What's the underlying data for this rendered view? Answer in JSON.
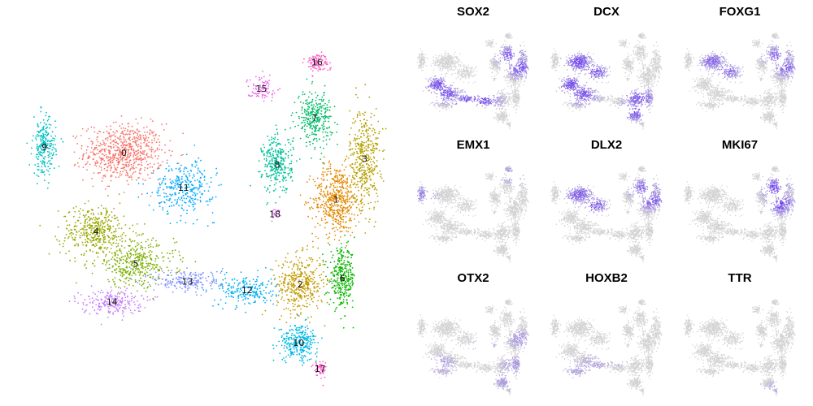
{
  "chart_data": [
    {
      "type": "scatter",
      "subtype": "umap-clusters",
      "title": "",
      "xlabel": "",
      "ylabel": "",
      "grid": false,
      "legend": "none",
      "clusters": [
        {
          "label": "0",
          "color": "#F8766D",
          "center": [
            14.5,
            31.5
          ],
          "spread": [
            4.5,
            4.5
          ],
          "n": 700
        },
        {
          "label": "1",
          "color": "#E38900",
          "center": [
            41.2,
            23.5
          ],
          "spread": [
            2.6,
            5.5
          ],
          "n": 520
        },
        {
          "label": "2",
          "color": "#C49A00",
          "center": [
            36.7,
            9.0
          ],
          "spread": [
            2.7,
            4.5
          ],
          "n": 400
        },
        {
          "label": "3",
          "color": "#B6A000",
          "center": [
            44.8,
            30.5
          ],
          "spread": [
            1.7,
            8.0
          ],
          "n": 420
        },
        {
          "label": "4",
          "color": "#99A800",
          "center": [
            11.0,
            18.0
          ],
          "spread": [
            4.0,
            4.0
          ],
          "n": 420
        },
        {
          "label": "5",
          "color": "#7CAE00",
          "center": [
            16.0,
            12.5
          ],
          "spread": [
            4.5,
            3.5
          ],
          "n": 380
        },
        {
          "label": "6",
          "color": "#0CB702",
          "center": [
            42.0,
            10.0
          ],
          "spread": [
            1.5,
            4.5
          ],
          "n": 320
        },
        {
          "label": "7",
          "color": "#00BE67",
          "center": [
            38.5,
            37.5
          ],
          "spread": [
            2.0,
            4.0
          ],
          "n": 320
        },
        {
          "label": "8",
          "color": "#00C19A",
          "center": [
            33.8,
            29.5
          ],
          "spread": [
            1.7,
            4.5
          ],
          "n": 300
        },
        {
          "label": "9",
          "color": "#00BFC4",
          "center": [
            4.5,
            32.5
          ],
          "spread": [
            1.3,
            4.5
          ],
          "n": 240
        },
        {
          "label": "10",
          "color": "#00B8E7",
          "center": [
            36.5,
            -1.0
          ],
          "spread": [
            2.2,
            2.8
          ],
          "n": 280
        },
        {
          "label": "11",
          "color": "#00A9FF",
          "center": [
            22.0,
            25.5
          ],
          "spread": [
            3.5,
            4.0
          ],
          "n": 320
        },
        {
          "label": "12",
          "color": "#01B0F3",
          "center": [
            30.0,
            8.0
          ],
          "spread": [
            3.2,
            2.5
          ],
          "n": 220
        },
        {
          "label": "13",
          "color": "#8494FF",
          "center": [
            22.5,
            9.5
          ],
          "spread": [
            4.0,
            1.8
          ],
          "n": 200
        },
        {
          "label": "14",
          "color": "#C77CFF",
          "center": [
            13.0,
            6.0
          ],
          "spread": [
            3.5,
            2.0
          ],
          "n": 220
        },
        {
          "label": "15",
          "color": "#ED68ED",
          "center": [
            31.8,
            42.5
          ],
          "spread": [
            1.6,
            1.8
          ],
          "n": 90
        },
        {
          "label": "16",
          "color": "#FF61C3",
          "center": [
            38.8,
            47.0
          ],
          "spread": [
            1.4,
            1.4
          ],
          "n": 110
        },
        {
          "label": "17",
          "color": "#FF61C9",
          "center": [
            39.2,
            -5.5
          ],
          "spread": [
            0.7,
            1.5
          ],
          "n": 60
        },
        {
          "label": "18",
          "color": "#E76BF3",
          "center": [
            33.5,
            21.0
          ],
          "spread": [
            0.6,
            0.8
          ],
          "n": 20
        }
      ]
    },
    {
      "type": "scatter",
      "subtype": "feature-plots",
      "low_color": "#D3D3D3",
      "high_color": "#6A3CF0",
      "panels": [
        {
          "gene": "SOX2",
          "high_regions": [
            "top-right",
            "left-arm",
            "center-band"
          ],
          "level": 0.85
        },
        {
          "gene": "DCX",
          "high_regions": [
            "left-lobe",
            "upper-left",
            "bottom-right"
          ],
          "level": 0.9
        },
        {
          "gene": "FOXG1",
          "high_regions": [
            "top-right",
            "upper-left"
          ],
          "level": 0.7
        },
        {
          "gene": "EMX1",
          "high_regions": [
            "far-left-tip",
            "top-right-tip"
          ],
          "level": 0.5
        },
        {
          "gene": "DLX2",
          "high_regions": [
            "upper-left",
            "top-right"
          ],
          "level": 0.8
        },
        {
          "gene": "MKI67",
          "high_regions": [
            "top-right-center"
          ],
          "level": 0.9
        },
        {
          "gene": "OTX2",
          "high_regions": [
            "scattered",
            "right-edge"
          ],
          "level": 0.4
        },
        {
          "gene": "HOXB2",
          "high_regions": [
            "bottom-left",
            "center"
          ],
          "level": 0.35
        },
        {
          "gene": "TTR",
          "high_regions": [
            "bottom-right-tip"
          ],
          "level": 0.25
        }
      ]
    }
  ]
}
